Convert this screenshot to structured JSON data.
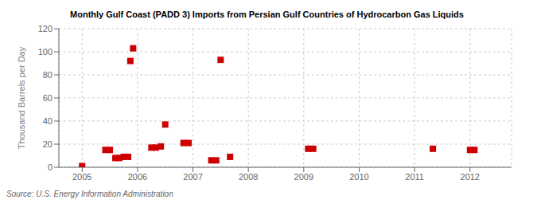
{
  "chart_data": {
    "type": "scatter",
    "title": "Monthly Gulf Coast (PADD 3) Imports from Persian Gulf Countries of Hydrocarbon Gas Liquids",
    "ylabel": "Thousand Barrels per Day",
    "annotations": [
      "Source: U.S. Energy Information Administration"
    ],
    "color": "#cc0000",
    "marker": "square",
    "grid": true,
    "xlim": [
      2004.58,
      2012.75
    ],
    "ylim": [
      0,
      120
    ],
    "xticks": [
      2005,
      2006,
      2007,
      2008,
      2009,
      2010,
      2011,
      2012
    ],
    "yticks": [
      0,
      20,
      40,
      60,
      80,
      100,
      120
    ],
    "x": [
      2005.0,
      2005.42,
      2005.5,
      2005.6,
      2005.67,
      2005.75,
      2005.83,
      2005.92,
      2005.87,
      2006.25,
      2006.33,
      2006.42,
      2006.5,
      2006.83,
      2006.92,
      2007.33,
      2007.42,
      2007.5,
      2007.67,
      2009.08,
      2009.17,
      2011.33,
      2012.0,
      2012.08
    ],
    "values": [
      1,
      15,
      15,
      8,
      8,
      9,
      9,
      103,
      92,
      17,
      17,
      18,
      37,
      21,
      21,
      6,
      6,
      93,
      9,
      16,
      16,
      16,
      15,
      15
    ]
  }
}
